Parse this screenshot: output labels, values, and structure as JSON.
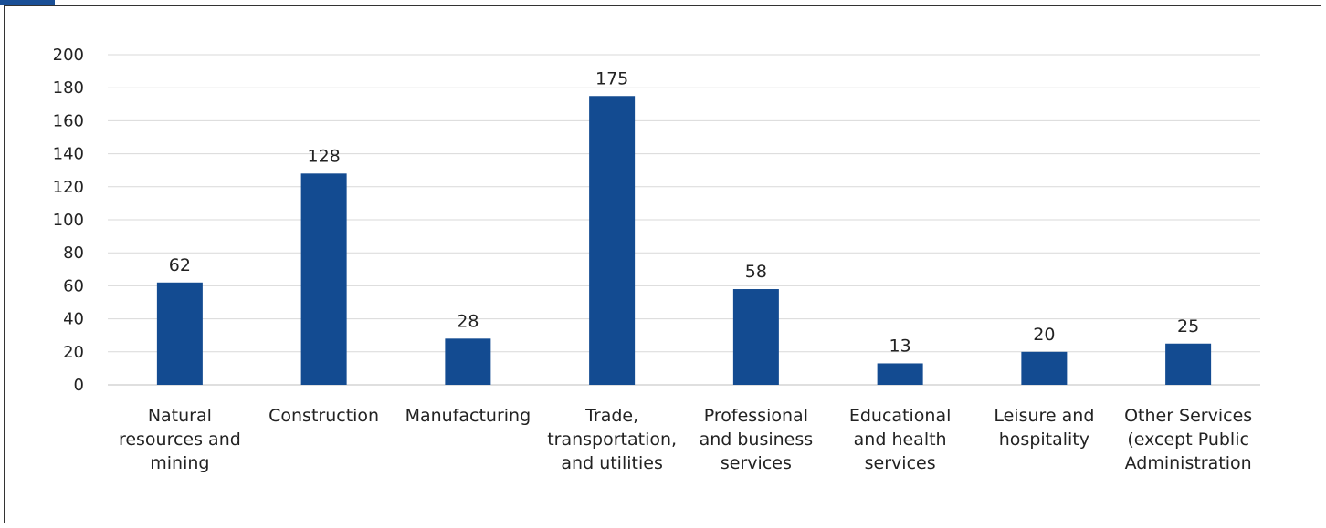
{
  "chart_data": {
    "type": "bar",
    "categories": [
      [
        "Natural",
        "resources and",
        "mining"
      ],
      [
        "Construction"
      ],
      [
        "Manufacturing"
      ],
      [
        "Trade,",
        "transportation,",
        "and utilities"
      ],
      [
        "Professional",
        "and business",
        "services"
      ],
      [
        "Educational",
        "and health",
        "services"
      ],
      [
        "Leisure and",
        "hospitality"
      ],
      [
        "Other Services",
        "(except Public",
        "Administration"
      ]
    ],
    "values": [
      62,
      128,
      28,
      175,
      58,
      13,
      20,
      25
    ],
    "data_labels": [
      "62",
      "128",
      "28",
      "175",
      "58",
      "13",
      "20",
      "25"
    ],
    "ylim": [
      0,
      200
    ],
    "yticks": [
      "0",
      "20",
      "40",
      "60",
      "80",
      "100",
      "120",
      "140",
      "160",
      "180",
      "200"
    ],
    "grid": true,
    "legend": "none",
    "bar_color": "#134b91",
    "title": "",
    "xlabel": "",
    "ylabel": ""
  }
}
